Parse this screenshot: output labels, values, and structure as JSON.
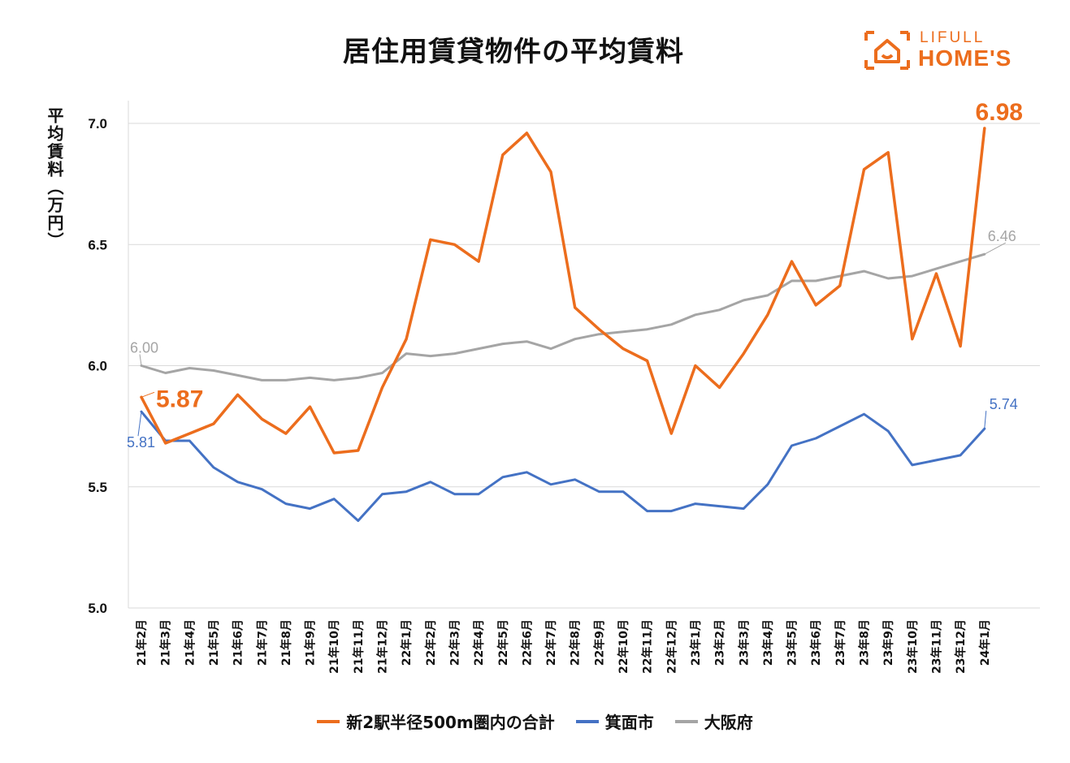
{
  "header": {
    "title": "居住用賃貸物件の平均賃料",
    "logo_line1": "LIFULL",
    "logo_line2": "HOME'S"
  },
  "colors": {
    "orange": "#ec6d1d",
    "blue": "#4472c4",
    "gray": "#a5a5a5",
    "grid": "#d9d9d9"
  },
  "chart_data": {
    "type": "line",
    "title": "居住用賃貸物件の平均賃料",
    "ylabel": "平均賃料（万円）",
    "xlabel": "",
    "ylim": [
      5.0,
      7.0
    ],
    "yticks": [
      "5.0",
      "5.5",
      "6.0",
      "6.5",
      "7.0"
    ],
    "categories": [
      "21年2月",
      "21年3月",
      "21年4月",
      "21年5月",
      "21年6月",
      "21年7月",
      "21年8月",
      "21年9月",
      "21年10月",
      "21年11月",
      "21年12月",
      "22年1月",
      "22年2月",
      "22年3月",
      "22年4月",
      "22年5月",
      "22年6月",
      "22年7月",
      "22年8月",
      "22年9月",
      "22年10月",
      "22年11月",
      "22年12月",
      "23年1月",
      "23年2月",
      "23年3月",
      "23年4月",
      "23年5月",
      "23年6月",
      "23年7月",
      "23年8月",
      "23年9月",
      "23年10月",
      "23年11月",
      "23年12月",
      "24年1月"
    ],
    "series": [
      {
        "name": "新2駅半径500m圏内の合計",
        "color": "#ec6d1d",
        "values": [
          5.87,
          5.68,
          5.72,
          5.76,
          5.88,
          5.78,
          5.72,
          5.83,
          5.64,
          5.65,
          5.91,
          6.11,
          6.52,
          6.5,
          6.43,
          6.87,
          6.96,
          6.8,
          6.24,
          6.15,
          6.07,
          6.02,
          5.72,
          6.0,
          5.91,
          6.05,
          6.21,
          6.43,
          6.25,
          6.33,
          6.81,
          6.88,
          6.11,
          6.38,
          6.08,
          6.98
        ]
      },
      {
        "name": "箕面市",
        "color": "#4472c4",
        "values": [
          5.81,
          5.69,
          5.69,
          5.58,
          5.52,
          5.49,
          5.43,
          5.41,
          5.45,
          5.36,
          5.47,
          5.48,
          5.52,
          5.47,
          5.47,
          5.54,
          5.56,
          5.51,
          5.53,
          5.48,
          5.48,
          5.4,
          5.4,
          5.43,
          5.42,
          5.41,
          5.51,
          5.67,
          5.7,
          5.75,
          5.8,
          5.73,
          5.59,
          5.61,
          5.63,
          5.74
        ]
      },
      {
        "name": "大阪府",
        "color": "#a5a5a5",
        "values": [
          6.0,
          5.97,
          5.99,
          5.98,
          5.96,
          5.94,
          5.94,
          5.95,
          5.94,
          5.95,
          5.97,
          6.05,
          6.04,
          6.05,
          6.07,
          6.09,
          6.1,
          6.07,
          6.11,
          6.13,
          6.14,
          6.15,
          6.17,
          6.21,
          6.23,
          6.27,
          6.29,
          6.35,
          6.35,
          6.37,
          6.39,
          6.36,
          6.37,
          6.4,
          6.43,
          6.46
        ]
      }
    ],
    "annotations": [
      {
        "series": "新2駅半径500m圏内の合計",
        "index": 0,
        "text": "5.87"
      },
      {
        "series": "新2駅半径500m圏内の合計",
        "index": 35,
        "text": "6.98"
      },
      {
        "series": "箕面市",
        "index": 0,
        "text": "5.81"
      },
      {
        "series": "箕面市",
        "index": 35,
        "text": "5.74"
      },
      {
        "series": "大阪府",
        "index": 0,
        "text": "6.00"
      },
      {
        "series": "大阪府",
        "index": 35,
        "text": "6.46"
      }
    ],
    "legend": [
      "新2駅半径500m圏内の合計",
      "箕面市",
      "大阪府"
    ],
    "legend_position": "bottom",
    "grid": true
  }
}
